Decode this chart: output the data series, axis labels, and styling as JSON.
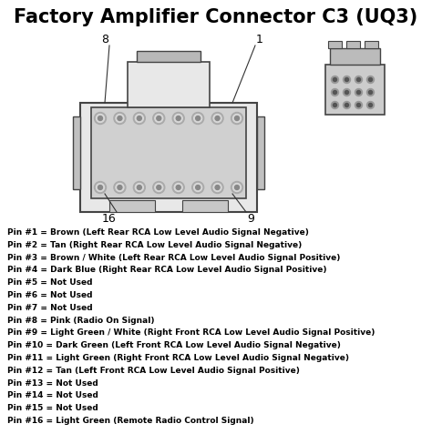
{
  "title": "Factory Amplifier Connector C3 (UQ3)",
  "title_fontsize": 15,
  "bg_color": "#ffffff",
  "text_color": "#000000",
  "pin_labels": [
    "Pin #1 = Brown (Left Rear RCA Low Level Audio Signal Negative)",
    "Pin #2 = Tan (Right Rear RCA Low Level Audio Signal Negative)",
    "Pin #3 = Brown / White (Left Rear RCA Low Level Audio Signal Positive)",
    "Pin #4 = Dark Blue (Right Rear RCA Low Level Audio Signal Positive)",
    "Pin #5 = Not Used",
    "Pin #6 = Not Used",
    "Pin #7 = Not Used",
    "Pin #8 = Pink (Radio On Signal)",
    "Pin #9 = Light Green / White (Right Front RCA Low Level Audio Signal Positive)",
    "Pin #10 = Dark Green (Left Front RCA Low Level Audio Signal Negative)",
    "Pin #11 = Light Green (Right Front RCA Low Level Audio Signal Negative)",
    "Pin #12 = Tan (Left Front RCA Low Level Audio Signal Positive)",
    "Pin #13 = Not Used",
    "Pin #14 = Not Used",
    "Pin #15 = Not Used",
    "Pin #16 = Light Green (Remote Radio Control Signal)"
  ],
  "pin_label_fontsize": 6.5,
  "connector_labels": [
    "8",
    "1",
    "16",
    "9"
  ],
  "connector_label_fontsize": 9,
  "line_color": "#333333",
  "connector_fill": "#e8e8e8",
  "connector_edge": "#444444",
  "pin_fill": "#bbbbbb",
  "pin_edge": "#555555"
}
